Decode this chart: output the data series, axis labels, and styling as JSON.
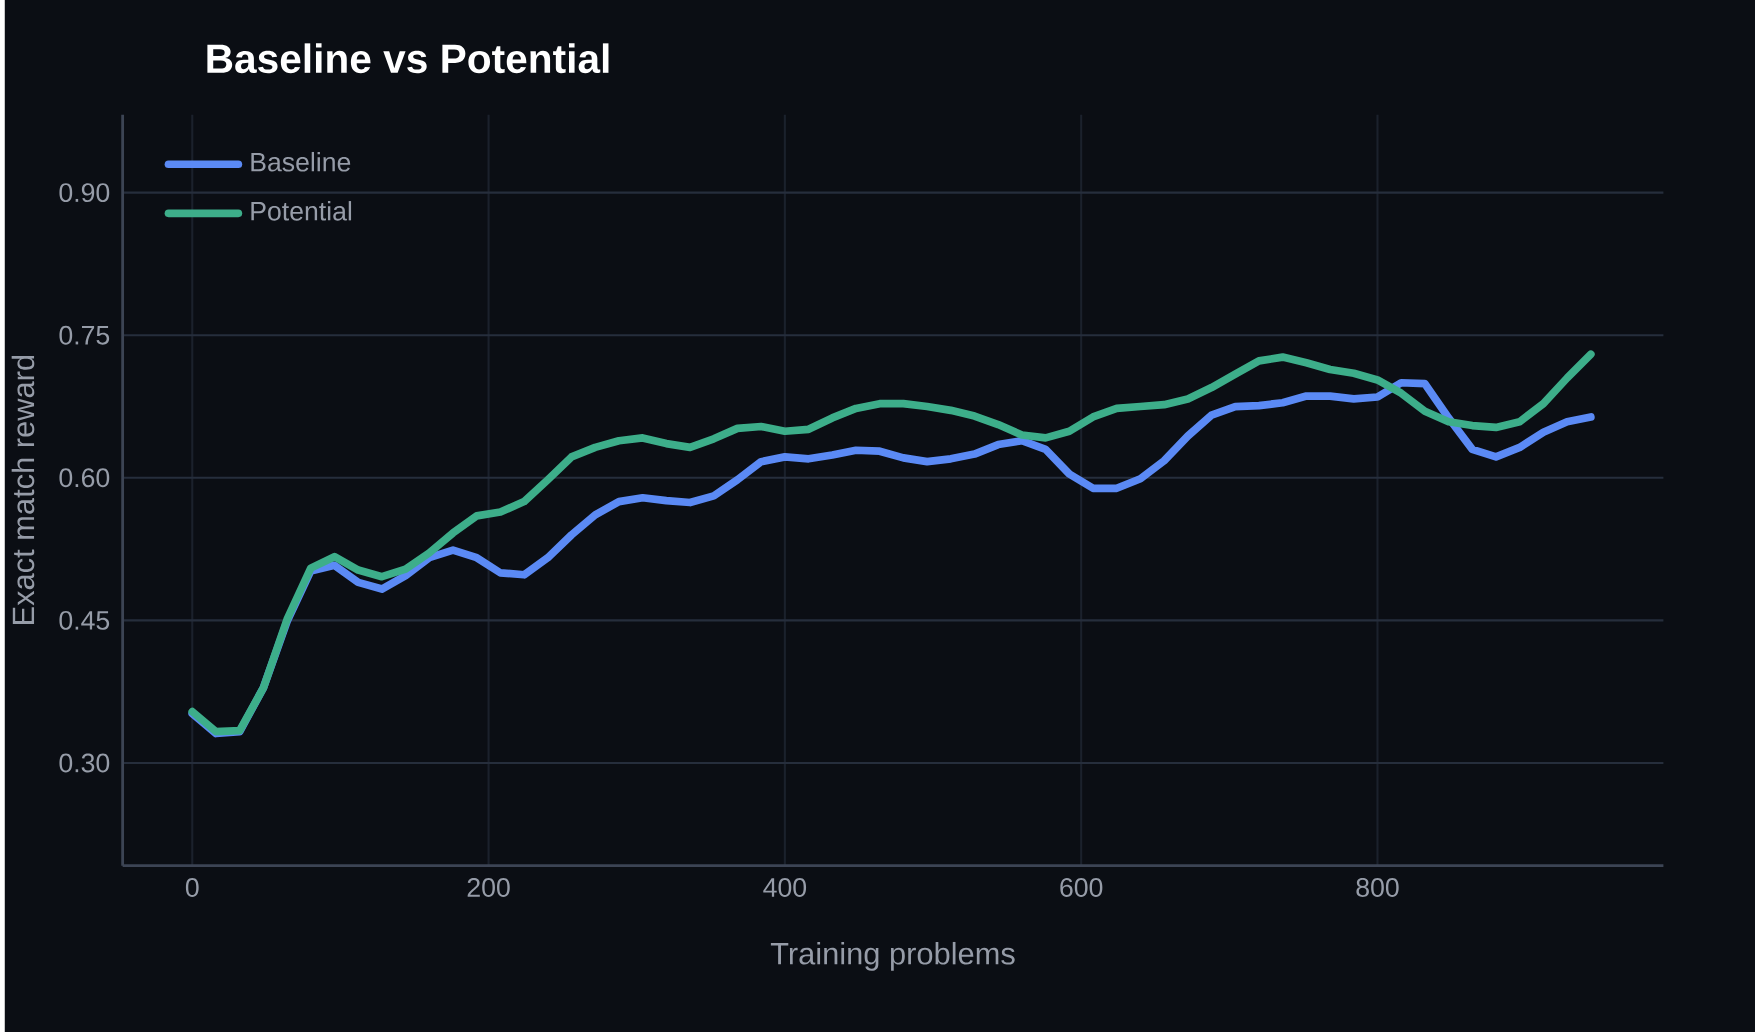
{
  "chart_data": {
    "type": "line",
    "title": "Baseline vs Potential",
    "xlabel": "Training problems",
    "ylabel": "Exact match reward",
    "x": [
      0,
      16,
      32,
      48,
      64,
      80,
      96,
      112,
      128,
      144,
      160,
      176,
      192,
      208,
      224,
      240,
      256,
      272,
      288,
      304,
      320,
      336,
      352,
      368,
      384,
      400,
      416,
      432,
      448,
      464,
      480,
      496,
      512,
      528,
      544,
      560,
      576,
      592,
      608,
      624,
      640,
      656,
      672,
      688,
      704,
      720,
      736,
      752,
      768,
      784,
      800,
      816,
      832,
      848,
      864,
      880,
      896,
      912,
      928,
      944
    ],
    "series": [
      {
        "name": "Baseline",
        "color": "#5b8af5",
        "values": [
          0.352,
          0.331,
          0.333,
          0.379,
          0.449,
          0.502,
          0.508,
          0.49,
          0.483,
          0.497,
          0.516,
          0.524,
          0.516,
          0.5,
          0.498,
          0.516,
          0.54,
          0.561,
          0.575,
          0.579,
          0.576,
          0.574,
          0.581,
          0.598,
          0.617,
          0.622,
          0.62,
          0.624,
          0.629,
          0.628,
          0.621,
          0.617,
          0.62,
          0.625,
          0.635,
          0.639,
          0.63,
          0.604,
          0.589,
          0.589,
          0.599,
          0.618,
          0.644,
          0.666,
          0.675,
          0.676,
          0.679,
          0.686,
          0.686,
          0.683,
          0.685,
          0.7,
          0.699,
          0.663,
          0.63,
          0.622,
          0.632,
          0.648,
          0.659,
          0.664
        ]
      },
      {
        "name": "Potential",
        "color": "#3dae8a",
        "values": [
          0.354,
          0.333,
          0.334,
          0.379,
          0.451,
          0.505,
          0.517,
          0.503,
          0.496,
          0.504,
          0.521,
          0.542,
          0.56,
          0.564,
          0.575,
          0.598,
          0.622,
          0.632,
          0.639,
          0.642,
          0.636,
          0.632,
          0.641,
          0.652,
          0.654,
          0.649,
          0.651,
          0.663,
          0.673,
          0.678,
          0.678,
          0.675,
          0.671,
          0.665,
          0.656,
          0.645,
          0.642,
          0.649,
          0.664,
          0.673,
          0.675,
          0.677,
          0.683,
          0.695,
          0.709,
          0.723,
          0.727,
          0.721,
          0.714,
          0.71,
          0.703,
          0.689,
          0.67,
          0.659,
          0.655,
          0.653,
          0.659,
          0.678,
          0.705,
          0.73
        ]
      }
    ],
    "xlim": [
      -47,
      993
    ],
    "ylim": [
      0.192,
      0.982
    ],
    "xticks": [
      0,
      200,
      400,
      600,
      800
    ],
    "yticks": [
      {
        "value": 0.3,
        "label": "0.30"
      },
      {
        "value": 0.45,
        "label": "0.45"
      },
      {
        "value": 0.6,
        "label": "0.60"
      },
      {
        "value": 0.75,
        "label": "0.75"
      },
      {
        "value": 0.9,
        "label": "0.90"
      }
    ],
    "grid": true,
    "legend": "top left",
    "marker": "none",
    "line_style": "solid"
  }
}
